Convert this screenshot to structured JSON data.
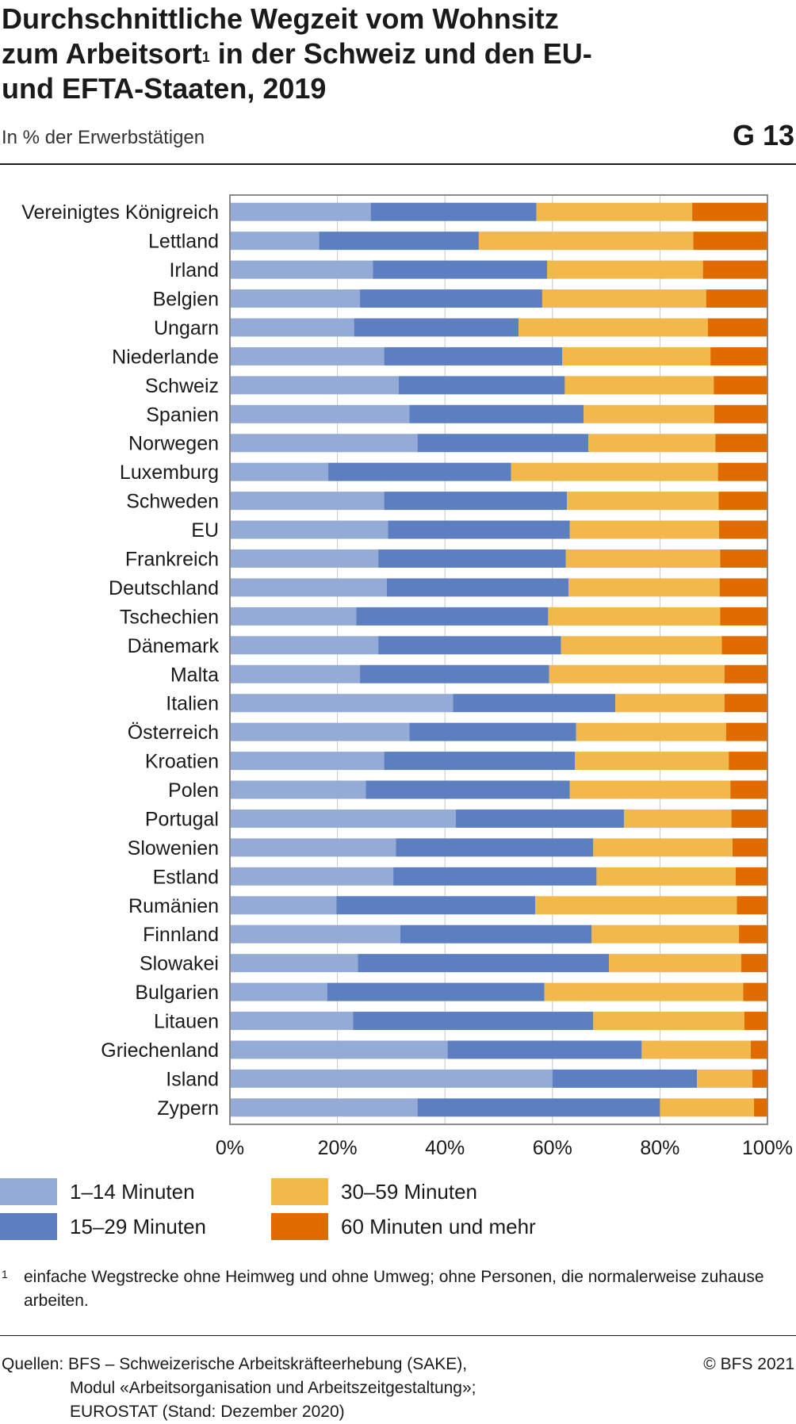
{
  "header": {
    "title_line1": "Durchschnittliche Wegzeit vom Wohnsitz",
    "title_line2a": "zum Arbeitsort",
    "title_sup": "1",
    "title_line2b": " in der Schweiz und den EU-",
    "title_line3": "und EFTA-Staaten, 2019",
    "subtitle": "In % der Erwerbstätigen",
    "graphic_number": "G 13"
  },
  "colors": {
    "c1": "#94abd8",
    "c2": "#5b7fc0",
    "c3": "#f2b84b",
    "c4": "#e06c00",
    "grid": "#c8c8c8",
    "frame": "#8a8a8a"
  },
  "chart_data": {
    "type": "bar",
    "orientation": "horizontal",
    "stacked": true,
    "xlim": [
      0,
      100
    ],
    "x_ticks": [
      "0%",
      "20%",
      "40%",
      "60%",
      "80%",
      "100%"
    ],
    "legend_position": "bottom",
    "grid": true,
    "categories": [
      "Vereinigtes Königreich",
      "Lettland",
      "Irland",
      "Belgien",
      "Ungarn",
      "Niederlande",
      "Schweiz",
      "Spanien",
      "Norwegen",
      "Luxemburg",
      "Schweden",
      "EU",
      "Frankreich",
      "Deutschland",
      "Tschechien",
      "Dänemark",
      "Malta",
      "Italien",
      "Österreich",
      "Kroatien",
      "Polen",
      "Portugal",
      "Slowenien",
      "Estland",
      "Rumänien",
      "Finnland",
      "Slowakei",
      "Bulgarien",
      "Litauen",
      "Griechenland",
      "Island",
      "Zypern"
    ],
    "series": [
      {
        "name": "1–14 Minuten",
        "color": "#94abd8",
        "values": [
          26.2,
          16.6,
          26.6,
          24.2,
          23.1,
          28.7,
          31.4,
          33.4,
          34.9,
          18.3,
          28.7,
          29.4,
          27.6,
          29.2,
          23.5,
          27.6,
          24.2,
          41.5,
          33.4,
          28.7,
          25.3,
          42.0,
          30.9,
          30.4,
          19.8,
          31.7,
          23.8,
          18.1,
          22.9,
          40.5,
          60.0,
          34.9
        ]
      },
      {
        "name": "15–29 Minuten",
        "color": "#5b7fc0",
        "values": [
          30.8,
          29.7,
          32.4,
          33.9,
          30.6,
          33.1,
          30.9,
          32.4,
          31.8,
          34.0,
          34.0,
          33.8,
          34.9,
          33.8,
          35.7,
          34.0,
          35.2,
          30.2,
          31.0,
          35.5,
          37.9,
          31.3,
          36.7,
          37.8,
          37.0,
          35.6,
          46.7,
          40.4,
          44.7,
          36.1,
          26.9,
          45.1
        ]
      },
      {
        "name": "30–59 Minuten",
        "color": "#f2b84b",
        "values": [
          29.0,
          39.9,
          29.0,
          30.5,
          35.2,
          27.6,
          27.7,
          24.3,
          23.6,
          38.5,
          28.2,
          27.8,
          28.7,
          28.1,
          32.0,
          29.9,
          32.6,
          20.3,
          27.9,
          28.6,
          29.9,
          20.0,
          25.9,
          25.9,
          37.5,
          27.4,
          24.6,
          37.0,
          28.1,
          20.3,
          10.3,
          17.5
        ]
      },
      {
        "name": "60 Minuten und mehr",
        "color": "#e06c00",
        "values": [
          14.0,
          13.8,
          12.0,
          11.4,
          11.1,
          10.6,
          10.0,
          9.9,
          9.7,
          9.2,
          9.1,
          9.0,
          8.8,
          8.9,
          8.8,
          8.5,
          8.0,
          8.0,
          7.7,
          7.2,
          6.9,
          6.7,
          6.5,
          5.9,
          5.7,
          5.3,
          4.9,
          4.5,
          4.3,
          3.1,
          2.8,
          2.5
        ]
      }
    ]
  },
  "legend": [
    {
      "label": "1–14 Minuten",
      "color": "#94abd8"
    },
    {
      "label": "30–59 Minuten",
      "color": "#f2b84b"
    },
    {
      "label": "15–29 Minuten",
      "color": "#5b7fc0"
    },
    {
      "label": "60 Minuten und mehr",
      "color": "#e06c00"
    }
  ],
  "footnote": {
    "mark": "1",
    "text": "einfache Wegstrecke ohne Heimweg und ohne Umweg; ohne Personen, die normalerweise zuhause arbeiten."
  },
  "sources": {
    "line1": "Quellen: BFS – Schweizerische Arbeitskräfteerhebung (SAKE),",
    "line2": "Modul «Arbeitsorganisation und Arbeitszeitgestaltung»;",
    "line3": "EUROSTAT (Stand: Dezember 2020)"
  },
  "copyright": "© BFS 2021"
}
